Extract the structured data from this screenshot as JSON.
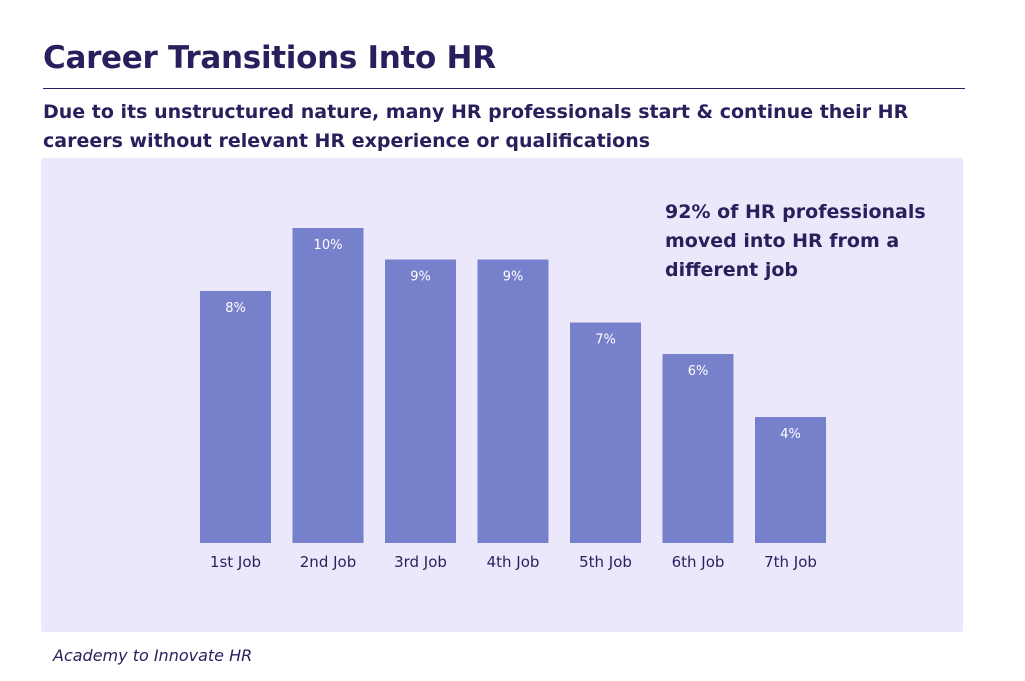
{
  "header": {
    "title": "Career Transitions Into HR",
    "subtitle": "Due to its unstructured nature, many HR professionals start & continue their HR careers without relevant HR experience or qualifications"
  },
  "callout": {
    "text": "92% of HR professionals moved into HR from a different job"
  },
  "footer": {
    "source": "Academy to Innovate HR"
  },
  "colors": {
    "bar": "#7780cb",
    "panel": "#ebe8fc",
    "text": "#2a1f5c",
    "bar_label": "#ffffff"
  },
  "chart_data": {
    "type": "bar",
    "categories": [
      "1st Job",
      "2nd Job",
      "3rd Job",
      "4th Job",
      "5th Job",
      "6th Job",
      "7th Job"
    ],
    "values": [
      8,
      10,
      9,
      9,
      7,
      6,
      4
    ],
    "data_labels": [
      "8%",
      "10%",
      "9%",
      "9%",
      "7%",
      "6%",
      "4%"
    ],
    "unit": "%",
    "title": "",
    "xlabel": "",
    "ylabel": "",
    "ylim": [
      0,
      10
    ],
    "grid": false,
    "legend": "none"
  }
}
